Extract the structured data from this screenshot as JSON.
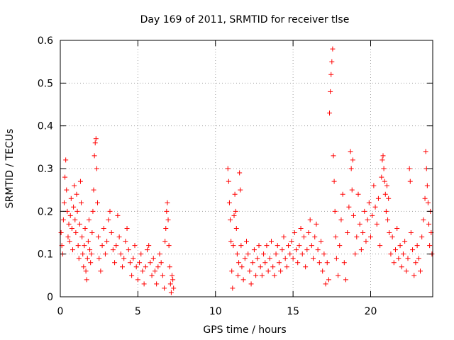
{
  "chart_data": {
    "type": "scatter",
    "title": "Day 169 of 2011, SRMTID for receiver tlse",
    "xlabel": "GPS time / hours",
    "ylabel": "SRMTID / TECUs",
    "xlim": [
      0,
      24
    ],
    "ylim": [
      0,
      0.6
    ],
    "x_ticks": [
      0,
      5,
      10,
      15,
      20
    ],
    "y_ticks": [
      0,
      0.1,
      0.2,
      0.3,
      0.4,
      0.5,
      0.6
    ],
    "x_tick_labels": [
      "0",
      "5",
      "10",
      "15",
      "20"
    ],
    "y_tick_labels": [
      "0",
      "0.1",
      "0.2",
      "0.3",
      "0.4",
      "0.5",
      "0.6"
    ],
    "grid": true,
    "marker": "+",
    "color": "#ff0000",
    "series": [
      {
        "name": "SRMTID",
        "points": [
          [
            0.05,
            0.15
          ],
          [
            0.1,
            0.12
          ],
          [
            0.15,
            0.1
          ],
          [
            0.2,
            0.18
          ],
          [
            0.25,
            0.22
          ],
          [
            0.3,
            0.28
          ],
          [
            0.35,
            0.32
          ],
          [
            0.4,
            0.25
          ],
          [
            0.45,
            0.2
          ],
          [
            0.5,
            0.14
          ],
          [
            0.55,
            0.17
          ],
          [
            0.6,
            0.13
          ],
          [
            0.65,
            0.19
          ],
          [
            0.7,
            0.23
          ],
          [
            0.75,
            0.16
          ],
          [
            0.8,
            0.11
          ],
          [
            0.85,
            0.21
          ],
          [
            0.9,
            0.26
          ],
          [
            0.95,
            0.18
          ],
          [
            1.0,
            0.15
          ],
          [
            1.05,
            0.24
          ],
          [
            1.1,
            0.2
          ],
          [
            1.15,
            0.12
          ],
          [
            1.2,
            0.09
          ],
          [
            1.25,
            0.17
          ],
          [
            1.3,
            0.27
          ],
          [
            1.35,
            0.22
          ],
          [
            1.4,
            0.14
          ],
          [
            1.45,
            0.1
          ],
          [
            1.5,
            0.07
          ],
          [
            1.55,
            0.12
          ],
          [
            1.6,
            0.16
          ],
          [
            1.65,
            0.06
          ],
          [
            1.7,
            0.04
          ],
          [
            1.75,
            0.09
          ],
          [
            1.8,
            0.13
          ],
          [
            1.85,
            0.18
          ],
          [
            1.9,
            0.11
          ],
          [
            1.95,
            0.08
          ],
          [
            2.0,
            0.1
          ],
          [
            2.05,
            0.15
          ],
          [
            2.1,
            0.2
          ],
          [
            2.15,
            0.25
          ],
          [
            2.2,
            0.33
          ],
          [
            2.25,
            0.36
          ],
          [
            2.3,
            0.37
          ],
          [
            2.35,
            0.3
          ],
          [
            2.4,
            0.22
          ],
          [
            2.45,
            0.14
          ],
          [
            2.5,
            0.09
          ],
          [
            2.6,
            0.06
          ],
          [
            2.7,
            0.12
          ],
          [
            2.8,
            0.16
          ],
          [
            2.9,
            0.1
          ],
          [
            3.0,
            0.13
          ],
          [
            3.1,
            0.18
          ],
          [
            3.2,
            0.2
          ],
          [
            3.3,
            0.15
          ],
          [
            3.4,
            0.11
          ],
          [
            3.5,
            0.08
          ],
          [
            3.6,
            0.12
          ],
          [
            3.7,
            0.19
          ],
          [
            3.8,
            0.14
          ],
          [
            3.9,
            0.1
          ],
          [
            4.0,
            0.07
          ],
          [
            4.1,
            0.09
          ],
          [
            4.2,
            0.13
          ],
          [
            4.3,
            0.16
          ],
          [
            4.4,
            0.11
          ],
          [
            4.5,
            0.08
          ],
          [
            4.6,
            0.05
          ],
          [
            4.7,
            0.09
          ],
          [
            4.8,
            0.12
          ],
          [
            4.9,
            0.07
          ],
          [
            5.0,
            0.04
          ],
          [
            5.1,
            0.08
          ],
          [
            5.2,
            0.1
          ],
          [
            5.3,
            0.06
          ],
          [
            5.4,
            0.03
          ],
          [
            5.5,
            0.07
          ],
          [
            5.6,
            0.11
          ],
          [
            5.7,
            0.12
          ],
          [
            5.8,
            0.08
          ],
          [
            5.9,
            0.05
          ],
          [
            6.0,
            0.09
          ],
          [
            6.1,
            0.06
          ],
          [
            6.2,
            0.03
          ],
          [
            6.3,
            0.07
          ],
          [
            6.4,
            0.1
          ],
          [
            6.5,
            0.08
          ],
          [
            6.6,
            0.05
          ],
          [
            6.7,
            0.02
          ],
          [
            6.75,
            0.13
          ],
          [
            6.8,
            0.16
          ],
          [
            6.85,
            0.2
          ],
          [
            6.9,
            0.22
          ],
          [
            6.95,
            0.18
          ],
          [
            7.0,
            0.12
          ],
          [
            7.05,
            0.07
          ],
          [
            7.1,
            0.03
          ],
          [
            7.15,
            0.01
          ],
          [
            7.2,
            0.05
          ],
          [
            7.25,
            0.04
          ],
          [
            7.3,
            0.02
          ],
          [
            10.8,
            0.3
          ],
          [
            10.85,
            0.27
          ],
          [
            10.9,
            0.22
          ],
          [
            10.95,
            0.18
          ],
          [
            11.0,
            0.13
          ],
          [
            11.05,
            0.06
          ],
          [
            11.1,
            0.02
          ],
          [
            11.15,
            0.12
          ],
          [
            11.2,
            0.19
          ],
          [
            11.25,
            0.24
          ],
          [
            11.3,
            0.2
          ],
          [
            11.35,
            0.16
          ],
          [
            11.4,
            0.1
          ],
          [
            11.45,
            0.05
          ],
          [
            11.5,
            0.08
          ],
          [
            11.55,
            0.29
          ],
          [
            11.6,
            0.25
          ],
          [
            11.65,
            0.12
          ],
          [
            11.7,
            0.07
          ],
          [
            11.8,
            0.04
          ],
          [
            11.9,
            0.09
          ],
          [
            12.0,
            0.13
          ],
          [
            12.1,
            0.1
          ],
          [
            12.2,
            0.06
          ],
          [
            12.3,
            0.03
          ],
          [
            12.4,
            0.08
          ],
          [
            12.5,
            0.11
          ],
          [
            12.6,
            0.05
          ],
          [
            12.7,
            0.09
          ],
          [
            12.8,
            0.12
          ],
          [
            12.9,
            0.07
          ],
          [
            13.0,
            0.05
          ],
          [
            13.1,
            0.1
          ],
          [
            13.2,
            0.08
          ],
          [
            13.3,
            0.12
          ],
          [
            13.4,
            0.06
          ],
          [
            13.5,
            0.09
          ],
          [
            13.6,
            0.13
          ],
          [
            13.7,
            0.07
          ],
          [
            13.8,
            0.05
          ],
          [
            13.9,
            0.1
          ],
          [
            14.0,
            0.12
          ],
          [
            14.1,
            0.08
          ],
          [
            14.2,
            0.06
          ],
          [
            14.3,
            0.11
          ],
          [
            14.4,
            0.14
          ],
          [
            14.5,
            0.09
          ],
          [
            14.6,
            0.07
          ],
          [
            14.7,
            0.12
          ],
          [
            14.8,
            0.1
          ],
          [
            14.9,
            0.13
          ],
          [
            15.0,
            0.09
          ],
          [
            15.1,
            0.15
          ],
          [
            15.2,
            0.11
          ],
          [
            15.3,
            0.08
          ],
          [
            15.4,
            0.12
          ],
          [
            15.5,
            0.16
          ],
          [
            15.6,
            0.1
          ],
          [
            15.7,
            0.14
          ],
          [
            15.8,
            0.07
          ],
          [
            15.9,
            0.11
          ],
          [
            16.0,
            0.15
          ],
          [
            16.1,
            0.18
          ],
          [
            16.2,
            0.12
          ],
          [
            16.3,
            0.09
          ],
          [
            16.4,
            0.14
          ],
          [
            16.5,
            0.17
          ],
          [
            16.6,
            0.11
          ],
          [
            16.7,
            0.08
          ],
          [
            16.8,
            0.13
          ],
          [
            16.9,
            0.06
          ],
          [
            17.0,
            0.1
          ],
          [
            17.1,
            0.03
          ],
          [
            17.2,
            0.08
          ],
          [
            17.3,
            0.04
          ],
          [
            17.35,
            0.43
          ],
          [
            17.4,
            0.48
          ],
          [
            17.45,
            0.52
          ],
          [
            17.5,
            0.55
          ],
          [
            17.55,
            0.58
          ],
          [
            17.6,
            0.33
          ],
          [
            17.65,
            0.27
          ],
          [
            17.7,
            0.2
          ],
          [
            17.75,
            0.14
          ],
          [
            17.8,
            0.09
          ],
          [
            17.9,
            0.05
          ],
          [
            18.0,
            0.12
          ],
          [
            18.1,
            0.18
          ],
          [
            18.2,
            0.24
          ],
          [
            18.3,
            0.08
          ],
          [
            18.4,
            0.04
          ],
          [
            18.5,
            0.15
          ],
          [
            18.6,
            0.21
          ],
          [
            18.7,
            0.34
          ],
          [
            18.75,
            0.3
          ],
          [
            18.8,
            0.25
          ],
          [
            18.85,
            0.32
          ],
          [
            18.9,
            0.19
          ],
          [
            19.0,
            0.1
          ],
          [
            19.1,
            0.14
          ],
          [
            19.2,
            0.24
          ],
          [
            19.3,
            0.17
          ],
          [
            19.4,
            0.11
          ],
          [
            19.5,
            0.15
          ],
          [
            19.6,
            0.2
          ],
          [
            19.7,
            0.13
          ],
          [
            19.8,
            0.18
          ],
          [
            19.9,
            0.22
          ],
          [
            20.0,
            0.14
          ],
          [
            20.1,
            0.19
          ],
          [
            20.2,
            0.26
          ],
          [
            20.3,
            0.21
          ],
          [
            20.4,
            0.17
          ],
          [
            20.5,
            0.23
          ],
          [
            20.6,
            0.12
          ],
          [
            20.7,
            0.28
          ],
          [
            20.75,
            0.32
          ],
          [
            20.8,
            0.33
          ],
          [
            20.85,
            0.3
          ],
          [
            20.9,
            0.27
          ],
          [
            20.95,
            0.24
          ],
          [
            21.0,
            0.2
          ],
          [
            21.05,
            0.26
          ],
          [
            21.1,
            0.18
          ],
          [
            21.15,
            0.23
          ],
          [
            21.2,
            0.15
          ],
          [
            21.3,
            0.1
          ],
          [
            21.4,
            0.14
          ],
          [
            21.5,
            0.08
          ],
          [
            21.6,
            0.11
          ],
          [
            21.7,
            0.16
          ],
          [
            21.8,
            0.09
          ],
          [
            21.9,
            0.12
          ],
          [
            22.0,
            0.07
          ],
          [
            22.1,
            0.1
          ],
          [
            22.2,
            0.13
          ],
          [
            22.3,
            0.06
          ],
          [
            22.4,
            0.09
          ],
          [
            22.5,
            0.3
          ],
          [
            22.55,
            0.27
          ],
          [
            22.6,
            0.15
          ],
          [
            22.7,
            0.11
          ],
          [
            22.8,
            0.05
          ],
          [
            22.9,
            0.08
          ],
          [
            23.0,
            0.12
          ],
          [
            23.1,
            0.09
          ],
          [
            23.2,
            0.06
          ],
          [
            23.3,
            0.14
          ],
          [
            23.4,
            0.18
          ],
          [
            23.5,
            0.23
          ],
          [
            23.55,
            0.34
          ],
          [
            23.6,
            0.3
          ],
          [
            23.65,
            0.26
          ],
          [
            23.7,
            0.22
          ],
          [
            23.75,
            0.17
          ],
          [
            23.8,
            0.12
          ],
          [
            23.85,
            0.2
          ],
          [
            23.9,
            0.15
          ],
          [
            23.95,
            0.1
          ]
        ]
      }
    ]
  }
}
